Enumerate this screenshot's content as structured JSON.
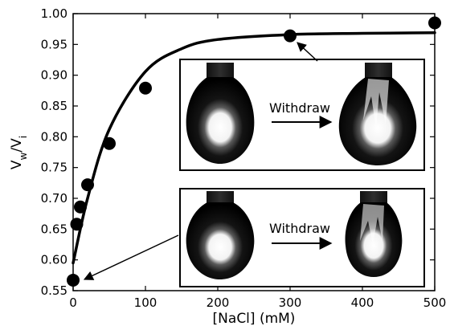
{
  "chart_data": {
    "type": "scatter",
    "xlabel": "[NaCl] (mM)",
    "ylabel": {
      "main": "V",
      "sub1": "w",
      "mid": "/V",
      "sub2": "i"
    },
    "xlim": [
      0,
      500
    ],
    "ylim": [
      0.55,
      1.0
    ],
    "x_ticks": [
      0,
      100,
      200,
      300,
      400,
      500
    ],
    "y_ticks": [
      0.55,
      0.6,
      0.65,
      0.7,
      0.75,
      0.8,
      0.85,
      0.9,
      0.95,
      1.0
    ],
    "grid": false,
    "series": [
      {
        "points": [
          {
            "x": 0,
            "y": 0.567
          },
          {
            "x": 5,
            "y": 0.658
          },
          {
            "x": 10,
            "y": 0.686
          },
          {
            "x": 20,
            "y": 0.722
          },
          {
            "x": 50,
            "y": 0.789
          },
          {
            "x": 100,
            "y": 0.879
          },
          {
            "x": 300,
            "y": 0.964
          },
          {
            "x": 500,
            "y": 0.985
          }
        ]
      }
    ],
    "fit_curve": {
      "points": [
        {
          "x": 0,
          "y": 0.595
        },
        {
          "x": 20,
          "y": 0.7
        },
        {
          "x": 50,
          "y": 0.812
        },
        {
          "x": 100,
          "y": 0.906
        },
        {
          "x": 150,
          "y": 0.943
        },
        {
          "x": 200,
          "y": 0.958
        },
        {
          "x": 300,
          "y": 0.966
        },
        {
          "x": 400,
          "y": 0.968
        },
        {
          "x": 500,
          "y": 0.969
        }
      ]
    },
    "insets": [
      {
        "label": "Withdraw",
        "points_to": {
          "x": 300,
          "y": 0.964
        }
      },
      {
        "label": "Withdraw",
        "points_to": {
          "x": 0,
          "y": 0.567
        }
      }
    ]
  }
}
